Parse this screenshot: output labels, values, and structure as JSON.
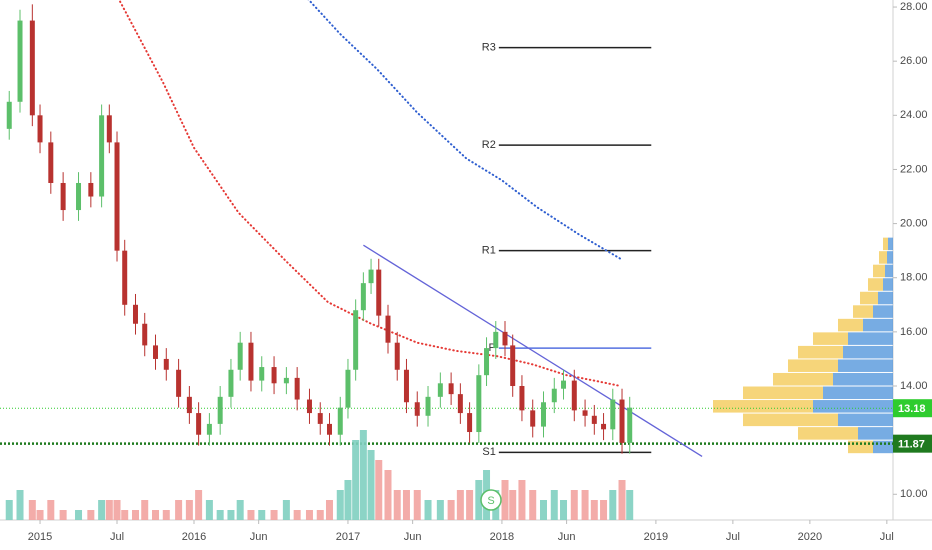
{
  "chart_data": {
    "type": "candlestick",
    "xlim": [
      2014.74,
      2020.54
    ],
    "xticks": [
      2015,
      {
        "value": 2015.5,
        "label": "Jul"
      },
      2016,
      {
        "value": 2016.42,
        "label": "Jun"
      },
      2017,
      {
        "value": 2017.42,
        "label": "Jun"
      },
      2018,
      {
        "value": 2018.42,
        "label": "Jun"
      },
      2019,
      {
        "value": 2019.5,
        "label": "Jul"
      },
      2020,
      {
        "value": 2020.5,
        "label": "Jul"
      }
    ],
    "ylim": [
      9.05,
      28.26
    ],
    "yticks": [
      {
        "value": 10,
        "label": "10.00"
      },
      {
        "value": 14,
        "label": "14.00"
      },
      {
        "value": 16,
        "label": "16.00"
      },
      {
        "value": 18,
        "label": "18.00"
      },
      {
        "value": 20,
        "label": "20.00"
      },
      {
        "value": 22,
        "label": "22.00"
      },
      {
        "value": 24,
        "label": "24.00"
      },
      {
        "value": 26,
        "label": "26.00"
      },
      {
        "value": 28,
        "label": "28.00"
      }
    ],
    "up_color": "#5cbf6a",
    "down_color": "#b8322f",
    "candles": {
      "x": [
        2014.8,
        2014.87,
        2014.95,
        2015.0,
        2015.07,
        2015.15,
        2015.25,
        2015.33,
        2015.4,
        2015.45,
        2015.5,
        2015.55,
        2015.62,
        2015.68,
        2015.75,
        2015.82,
        2015.9,
        2015.97,
        2016.03,
        2016.1,
        2016.17,
        2016.24,
        2016.3,
        2016.37,
        2016.44,
        2016.52,
        2016.6,
        2016.67,
        2016.75,
        2016.82,
        2016.88,
        2016.95,
        2017.0,
        2017.05,
        2017.1,
        2017.15,
        2017.2,
        2017.26,
        2017.32,
        2017.38,
        2017.45,
        2017.52,
        2017.6,
        2017.67,
        2017.73,
        2017.79,
        2017.85,
        2017.9,
        2017.96,
        2018.02,
        2018.07,
        2018.13,
        2018.2,
        2018.27,
        2018.34,
        2018.4,
        2018.47,
        2018.54,
        2018.6,
        2018.66,
        2018.72,
        2018.78,
        2018.83
      ],
      "open": [
        23.5,
        24.5,
        27.5,
        24,
        23,
        21.5,
        20.5,
        21.5,
        21,
        24,
        23,
        19,
        17,
        16.3,
        15.5,
        15,
        14.6,
        13.6,
        13,
        12.2,
        12.6,
        13.6,
        14.6,
        15.6,
        14.2,
        14.7,
        14.1,
        14.3,
        13.5,
        13,
        12.6,
        12.2,
        13.2,
        14.6,
        16.8,
        17.8,
        18.3,
        16.6,
        15.6,
        14.6,
        13.4,
        12.9,
        13.6,
        14.1,
        13.7,
        13,
        12.3,
        14.4,
        15.4,
        16,
        15.5,
        14,
        13.1,
        12.5,
        13.4,
        13.9,
        14.2,
        13.1,
        12.9,
        12.6,
        12.4,
        13.5,
        11.9
      ],
      "high": [
        24.9,
        27.9,
        28.1,
        24.4,
        23.4,
        21.9,
        21.9,
        21.9,
        24.4,
        24.4,
        23.4,
        19.4,
        17.4,
        16.7,
        15.9,
        15.4,
        15,
        14,
        13.4,
        13,
        14,
        15,
        16,
        16,
        15.1,
        15.1,
        14.7,
        14.7,
        13.9,
        13.4,
        13,
        13.6,
        15,
        17.2,
        18.2,
        18.7,
        18.7,
        17,
        16,
        15,
        13.8,
        14,
        14.5,
        14.5,
        14.1,
        13.4,
        14.8,
        15.8,
        16.4,
        16.4,
        15.9,
        14.4,
        13.5,
        13.8,
        14.3,
        14.6,
        14.6,
        13.5,
        13.3,
        13,
        13.9,
        13.9,
        13.6
      ],
      "low": [
        23.1,
        24.1,
        23.6,
        22.6,
        21.1,
        20.1,
        20.1,
        20.6,
        20.6,
        22.6,
        18.6,
        16.6,
        15.9,
        15.1,
        14.6,
        14.2,
        13.2,
        12.6,
        11.8,
        11.8,
        12.2,
        13.2,
        14.2,
        13.8,
        13.8,
        13.7,
        13.7,
        13.1,
        12.6,
        12.2,
        11.8,
        11.8,
        12.8,
        14.2,
        16.4,
        17.4,
        16.2,
        15.2,
        14.2,
        13,
        12.5,
        12.5,
        13.2,
        13.3,
        12.6,
        11.9,
        11.9,
        14,
        15,
        15.1,
        13.6,
        12.7,
        12.1,
        12.1,
        13,
        13.5,
        12.7,
        12.5,
        12.2,
        12,
        12,
        11.5,
        11.5
      ],
      "close": [
        24.5,
        27.5,
        24,
        23,
        21.5,
        20.5,
        21.5,
        21,
        24,
        23,
        19,
        17,
        16.3,
        15.5,
        15,
        14.6,
        13.6,
        13,
        12.2,
        12.6,
        13.6,
        14.6,
        15.6,
        14.2,
        14.7,
        14.1,
        14.3,
        13.5,
        13,
        12.6,
        12.2,
        13.2,
        14.6,
        16.8,
        17.8,
        18.3,
        16.6,
        15.6,
        14.6,
        13.4,
        12.9,
        13.6,
        14.1,
        13.7,
        13,
        12.3,
        14.4,
        15.4,
        16,
        15.5,
        14,
        13.1,
        12.5,
        13.4,
        13.9,
        14.2,
        13.1,
        12.9,
        12.6,
        12.4,
        13.5,
        11.9,
        13.2
      ],
      "volume": [
        2,
        3,
        2,
        1,
        2,
        1,
        1,
        1,
        2,
        2,
        2,
        1,
        1,
        2,
        1,
        1,
        2,
        2,
        3,
        2,
        1,
        1,
        2,
        1,
        1,
        1,
        2,
        1,
        1,
        1,
        2,
        3,
        4,
        8,
        9,
        7,
        6,
        5,
        3,
        3,
        3,
        2,
        2,
        2,
        3,
        3,
        4,
        5,
        3,
        4,
        3,
        4,
        3,
        2,
        3,
        2,
        3,
        3,
        2,
        2,
        3,
        4,
        3
      ]
    },
    "moving_averages": [
      {
        "color": "#e53935",
        "x": [
          2015.52,
          2015.8,
          2016.0,
          2016.29,
          2016.6,
          2016.87,
          2017.15,
          2017.45,
          2017.7,
          2017.97,
          2018.2,
          2018.42,
          2018.6,
          2018.77
        ],
        "values": [
          28.2,
          25.2,
          22.8,
          20.4,
          18.6,
          17.1,
          16.3,
          15.6,
          15.3,
          15.1,
          14.8,
          14.4,
          14.2,
          14.0
        ]
      },
      {
        "color": "#2f5fd0",
        "x": [
          2016.74,
          2016.95,
          2017.19,
          2017.45,
          2017.77,
          2018.0,
          2018.23,
          2018.5,
          2018.77
        ],
        "values": [
          28.3,
          27.0,
          25.7,
          24.1,
          22.4,
          21.6,
          20.6,
          19.6,
          18.7
        ]
      }
    ],
    "trendline": {
      "color": "#6464d8",
      "x": [
        2017.1,
        2019.3
      ],
      "values": [
        19.2,
        11.4
      ]
    },
    "pivot_x": [
      2017.98,
      2018.97
    ],
    "pivots": [
      {
        "label": "R3",
        "value": 26.5,
        "color": "#222222"
      },
      {
        "label": "R2",
        "value": 22.9,
        "color": "#222222"
      },
      {
        "label": "R1",
        "value": 19.0,
        "color": "#222222"
      },
      {
        "label": "P",
        "value": 15.4,
        "color": "#5470e0"
      },
      {
        "label": "S1",
        "value": 11.55,
        "color": "#222222"
      }
    ],
    "price_lines": [
      {
        "value": 13.18,
        "color": "#2ecc2e"
      },
      {
        "value": 11.87,
        "color": "#1f7a1f"
      }
    ],
    "volume_profile": {
      "levels": [
        11.75,
        12.25,
        12.75,
        13.25,
        13.75,
        14.25,
        14.75,
        15.25,
        15.75,
        16.25,
        16.75,
        17.25,
        17.75,
        18.25,
        18.75,
        19.25
      ],
      "series": [
        {
          "color": "#4a90d9",
          "values": [
            20,
            35,
            55,
            80,
            70,
            60,
            55,
            50,
            45,
            30,
            20,
            15,
            10,
            8,
            6,
            5
          ]
        },
        {
          "color": "#f3c74d",
          "values": [
            25,
            60,
            95,
            100,
            80,
            60,
            50,
            45,
            35,
            25,
            20,
            18,
            15,
            12,
            8,
            5
          ]
        }
      ]
    },
    "annotation": "S"
  }
}
